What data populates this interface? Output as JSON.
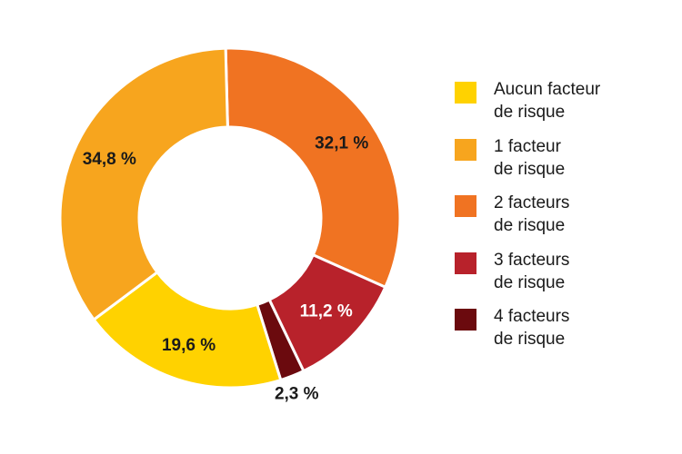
{
  "chart_data": {
    "type": "pie",
    "variant": "donut",
    "categories": [
      "Aucun facteur de risque",
      "1 facteur de risque",
      "2 facteurs de risque",
      "3 facteurs de risque",
      "4 facteurs de risque"
    ],
    "values": [
      19.6,
      34.8,
      32.1,
      11.2,
      2.3
    ],
    "value_labels": [
      "19,6 %",
      "34,8 %",
      "32,1 %",
      "11,2 %",
      "2,3 %"
    ],
    "colors": [
      "#FFD200",
      "#F7A51E",
      "#F07322",
      "#B8222B",
      "#6B0A0E"
    ],
    "legend": {
      "placement": "right",
      "entries": [
        {
          "line1": "Aucun facteur",
          "line2": "de risque",
          "color": "#FFD200"
        },
        {
          "line1": "1 facteur",
          "line2": "de risque",
          "color": "#F7A51E"
        },
        {
          "line1": "2 facteurs",
          "line2": "de risque",
          "color": "#F07322"
        },
        {
          "line1": "3 facteurs",
          "line2": "de risque",
          "color": "#B8222B"
        },
        {
          "line1": "4 facteurs",
          "line2": "de risque",
          "color": "#6B0A0E"
        }
      ]
    }
  }
}
